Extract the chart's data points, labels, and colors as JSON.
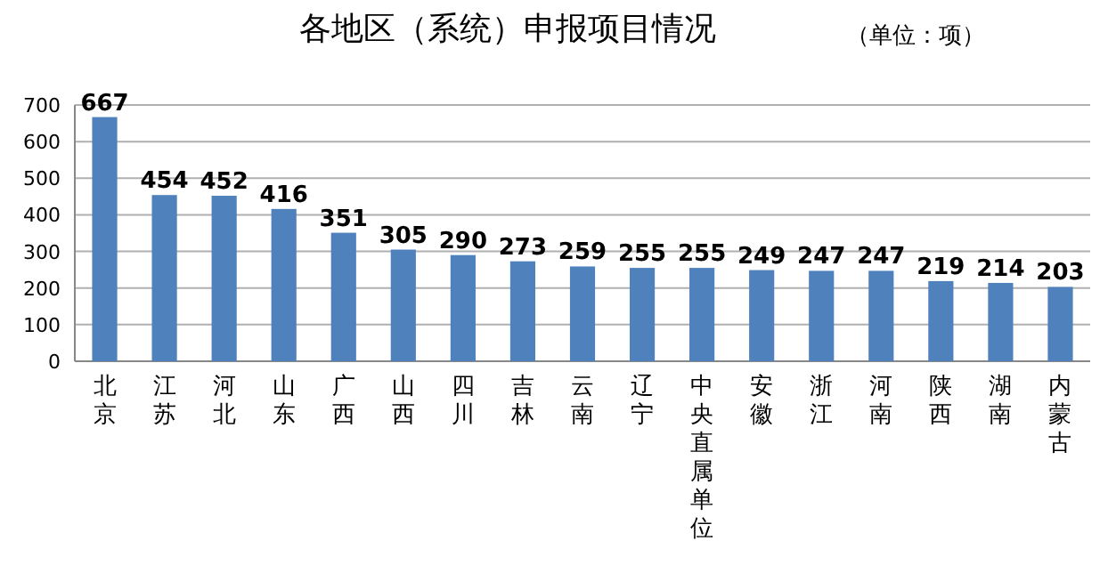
{
  "chart_data": {
    "type": "bar",
    "title": "各地区（系统）申报项目情况",
    "annotations": [
      "（单位：项）"
    ],
    "categories": [
      "北京",
      "江苏",
      "河北",
      "山东",
      "广西",
      "山西",
      "四川",
      "吉林",
      "云南",
      "辽宁",
      "中央直属单位",
      "安徽",
      "浙江",
      "河南",
      "陕西",
      "湖南",
      "内蒙古"
    ],
    "values": [
      667,
      454,
      452,
      416,
      351,
      305,
      290,
      273,
      259,
      255,
      255,
      249,
      247,
      247,
      219,
      214,
      203
    ],
    "color": "#4f81bd",
    "ylim": [
      0,
      700
    ],
    "yticks": [
      0,
      100,
      200,
      300,
      400,
      500,
      600,
      700
    ],
    "grid": "y",
    "data_labels": true
  }
}
